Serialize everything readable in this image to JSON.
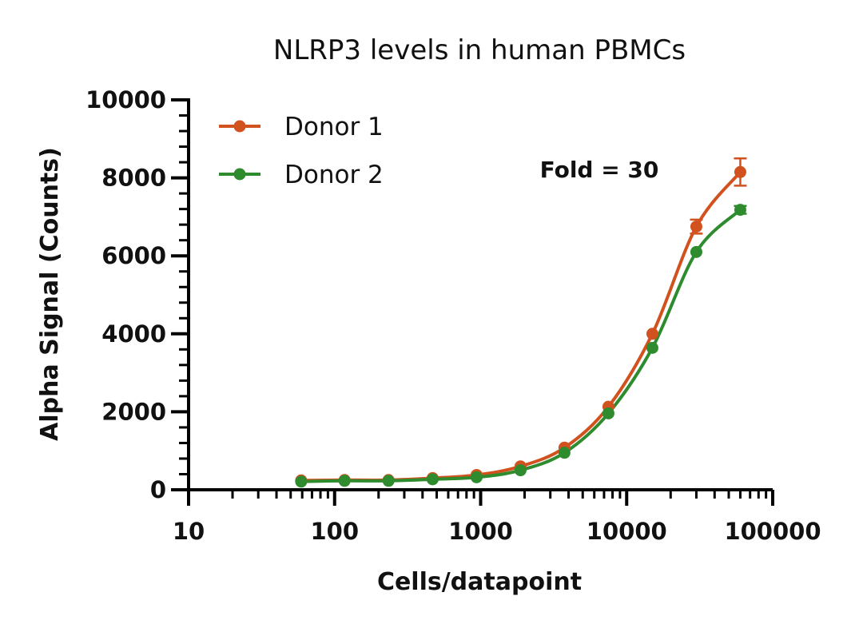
{
  "chart_data": {
    "type": "scatter",
    "title": "NLRP3 levels in human PBMCs",
    "xlabel": "Cells/datapoint",
    "ylabel": "Alpha Signal (Counts)",
    "x_scale": "log",
    "xlim": [
      10,
      100000
    ],
    "ylim": [
      0,
      10000
    ],
    "x_ticks": [
      10,
      100,
      1000,
      10000,
      100000
    ],
    "x_tick_labels": [
      "10",
      "100",
      "1000",
      "10000",
      "100000"
    ],
    "y_ticks": [
      0,
      2000,
      4000,
      6000,
      8000,
      10000
    ],
    "y_tick_labels": [
      "0",
      "2000",
      "4000",
      "6000",
      "8000",
      "10000"
    ],
    "annotation": "Fold = 30",
    "legend_position": "top-left",
    "grid": false,
    "fit": "sigmoidal curve fit",
    "series": [
      {
        "name": "Donor 1",
        "color": "#D2521F",
        "x": [
          59,
          117,
          234,
          469,
          938,
          1875,
          3750,
          7500,
          15000,
          30000,
          60000
        ],
        "y": [
          240,
          250,
          250,
          300,
          380,
          600,
          1080,
          2130,
          4000,
          6750,
          8150
        ],
        "error": [
          0,
          0,
          0,
          0,
          0,
          0,
          0,
          0,
          0,
          180,
          350
        ]
      },
      {
        "name": "Donor 2",
        "color": "#2E8B2E",
        "x": [
          59,
          117,
          234,
          469,
          938,
          1875,
          3750,
          7500,
          15000,
          30000,
          60000
        ],
        "y": [
          210,
          230,
          230,
          270,
          320,
          500,
          950,
          1960,
          3640,
          6100,
          7180
        ],
        "error": [
          0,
          0,
          0,
          0,
          0,
          0,
          0,
          0,
          0,
          0,
          100
        ]
      }
    ]
  }
}
